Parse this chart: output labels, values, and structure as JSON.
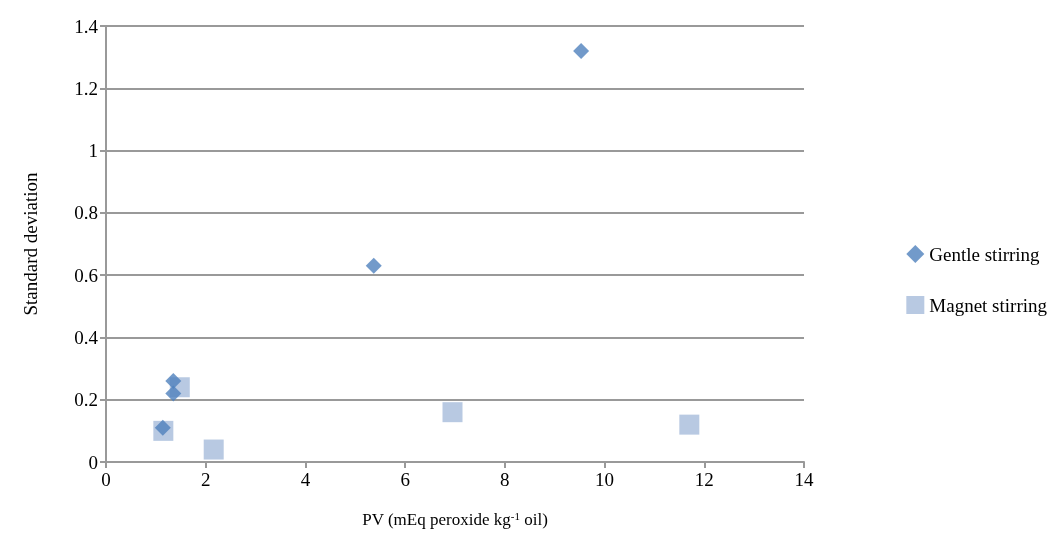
{
  "chart_data": {
    "type": "scatter",
    "xlabel": "PV (mEq peroxide kg$^{-1}$ oil)",
    "ylabel": "Standard deviation",
    "xlim": [
      0,
      14
    ],
    "xticks": [
      0,
      2,
      4,
      6,
      8,
      10,
      12,
      14
    ],
    "ylim": [
      0,
      1.4
    ],
    "yticks": [
      0,
      0.2,
      0.4,
      0.6,
      0.8,
      1,
      1.2,
      1.4
    ],
    "grid": "y",
    "legend": "right",
    "series": [
      {
        "name": "Gentle stirring",
        "color": "#4f81bd",
        "marker": "diamond",
        "x": [
          1.14,
          1.35,
          1.35,
          5.37,
          9.53
        ],
        "values": [
          0.11,
          0.26,
          0.22,
          0.63,
          1.32
        ]
      },
      {
        "name": "Magnet stirring",
        "color": "#a6bbdb",
        "marker": "square",
        "x": [
          1.15,
          1.48,
          2.16,
          6.95,
          11.7
        ],
        "values": [
          0.1,
          0.24,
          0.04,
          0.16,
          0.12
        ]
      }
    ]
  }
}
